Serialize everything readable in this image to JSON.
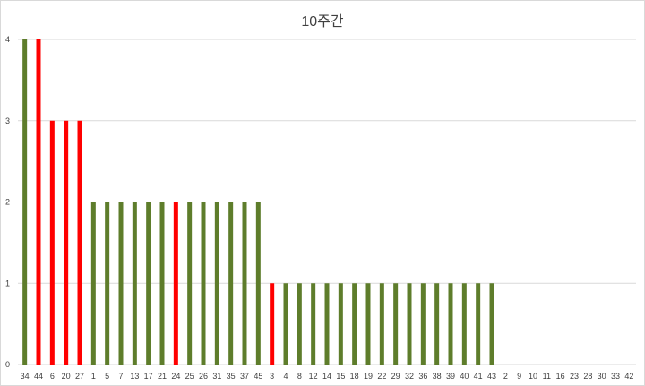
{
  "chart_data": {
    "type": "bar",
    "title": "10주간",
    "xlabel": "",
    "ylabel": "",
    "ylim": [
      0,
      4
    ],
    "yticks": [
      0,
      1,
      2,
      3,
      4
    ],
    "grid": true,
    "categories": [
      "34",
      "44",
      "6",
      "20",
      "27",
      "1",
      "5",
      "7",
      "13",
      "17",
      "21",
      "24",
      "25",
      "26",
      "31",
      "35",
      "37",
      "45",
      "3",
      "4",
      "8",
      "12",
      "14",
      "15",
      "18",
      "19",
      "22",
      "29",
      "32",
      "36",
      "38",
      "39",
      "40",
      "41",
      "43",
      "2",
      "9",
      "10",
      "11",
      "16",
      "23",
      "28",
      "30",
      "33",
      "42"
    ],
    "values": [
      4,
      4,
      3,
      3,
      3,
      2,
      2,
      2,
      2,
      2,
      2,
      2,
      2,
      2,
      2,
      2,
      2,
      2,
      1,
      1,
      1,
      1,
      1,
      1,
      1,
      1,
      1,
      1,
      1,
      1,
      1,
      1,
      1,
      1,
      1,
      0,
      0,
      0,
      0,
      0,
      0,
      0,
      0,
      0,
      0
    ],
    "bar_colors": [
      "green",
      "red",
      "red",
      "red",
      "red",
      "green",
      "green",
      "green",
      "green",
      "green",
      "green",
      "red",
      "green",
      "green",
      "green",
      "green",
      "green",
      "green",
      "red",
      "green",
      "green",
      "green",
      "green",
      "green",
      "green",
      "green",
      "green",
      "green",
      "green",
      "green",
      "green",
      "green",
      "green",
      "green",
      "green",
      "green",
      "green",
      "green",
      "green",
      "green",
      "green",
      "green",
      "green",
      "green",
      "green"
    ],
    "colors": {
      "green": "#5e7d2b",
      "red": "#ff0000",
      "grid": "#d9d9d9",
      "text": "#404040"
    }
  }
}
